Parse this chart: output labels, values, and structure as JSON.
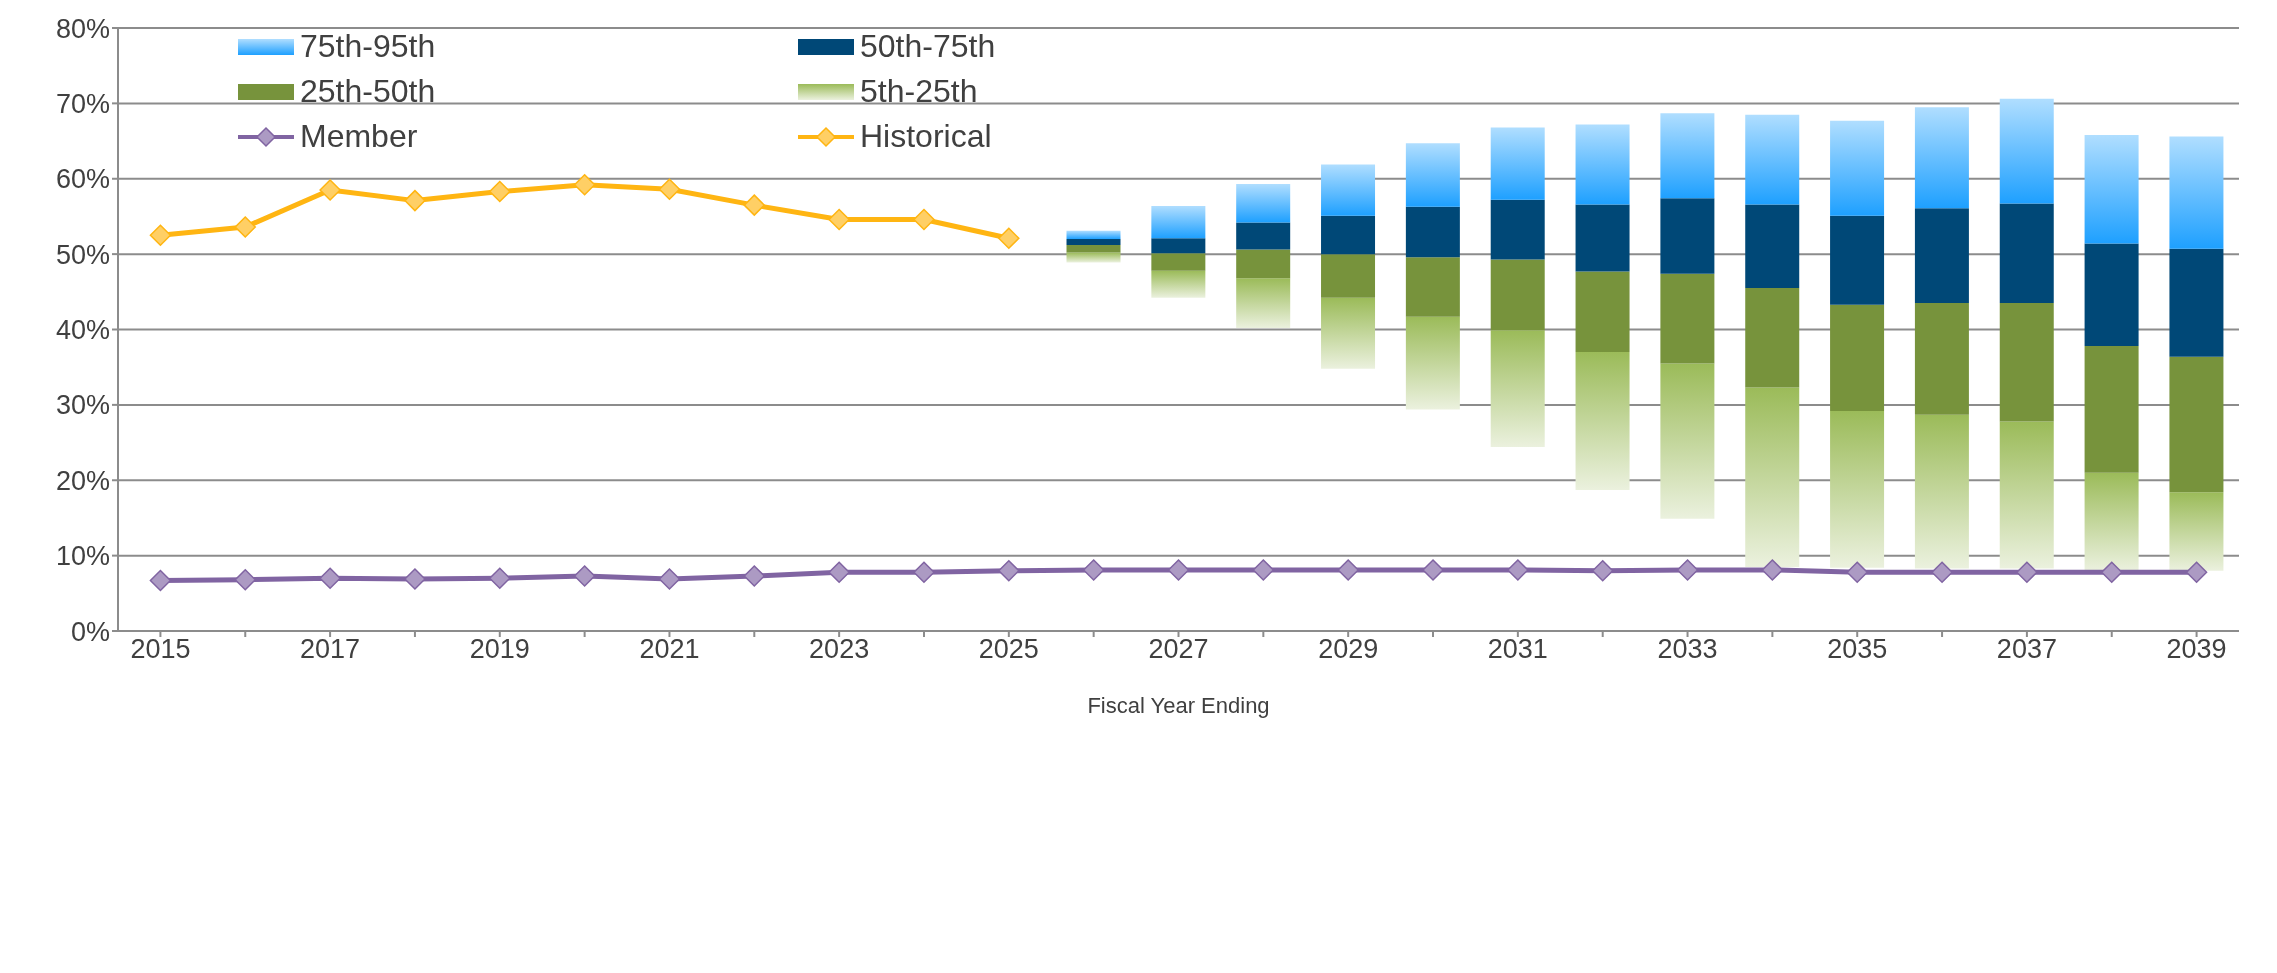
{
  "chart_data": {
    "type": "bar",
    "xlabel": "Fiscal Year Ending",
    "categories": [
      "2015",
      null,
      "2017",
      null,
      "2019",
      null,
      "2021",
      null,
      "2023",
      null,
      "2025",
      null,
      "2027",
      null,
      "2029",
      null,
      "2031",
      null,
      "2033",
      null,
      "2035",
      null,
      "2037",
      null,
      "2039"
    ],
    "series": [
      {
        "name": "5th-25th",
        "color": "#9bbb59",
        "base": [
          null,
          null,
          null,
          null,
          null,
          null,
          null,
          null,
          null,
          null,
          null,
          48.9,
          44.2,
          40.2,
          34.8,
          29.4,
          24.4,
          18.7,
          14.9,
          8.5,
          8.4,
          8.3,
          8.3,
          8.0,
          8.0
        ],
        "values": [
          null,
          null,
          null,
          null,
          null,
          null,
          null,
          null,
          null,
          null,
          null,
          1.3,
          3.6,
          6.6,
          9.4,
          12.3,
          15.5,
          18.3,
          20.6,
          23.8,
          20.8,
          20.4,
          19.5,
          13.0,
          10.4
        ]
      },
      {
        "name": "25th-50th",
        "color": "#77933c",
        "base": [
          null,
          null,
          null,
          null,
          null,
          null,
          null,
          null,
          null,
          null,
          null,
          50.2,
          47.8,
          46.8,
          44.2,
          41.7,
          39.9,
          37.0,
          35.5,
          32.3,
          29.2,
          28.7,
          27.8,
          21.0,
          18.4
        ],
        "values": [
          null,
          null,
          null,
          null,
          null,
          null,
          null,
          null,
          null,
          null,
          null,
          1.0,
          2.3,
          3.8,
          5.8,
          7.9,
          9.4,
          10.7,
          11.9,
          13.2,
          14.1,
          14.8,
          15.7,
          16.8,
          18.0
        ]
      },
      {
        "name": "50th-75th",
        "color": "#004877",
        "base": [
          null,
          null,
          null,
          null,
          null,
          null,
          null,
          null,
          null,
          null,
          null,
          51.2,
          50.1,
          50.6,
          50.0,
          49.6,
          49.3,
          47.7,
          47.4,
          45.5,
          43.3,
          43.5,
          43.5,
          37.8,
          36.4
        ],
        "values": [
          null,
          null,
          null,
          null,
          null,
          null,
          null,
          null,
          null,
          null,
          null,
          0.8,
          2.0,
          3.6,
          5.1,
          6.7,
          7.9,
          8.9,
          10.0,
          11.1,
          11.8,
          12.6,
          13.2,
          13.6,
          14.3
        ]
      },
      {
        "name": "75th-95th",
        "color": "#1ea0ff",
        "base": [
          null,
          null,
          null,
          null,
          null,
          null,
          null,
          null,
          null,
          null,
          null,
          52.0,
          52.1,
          54.2,
          55.1,
          56.3,
          57.2,
          56.6,
          57.4,
          56.6,
          55.1,
          56.1,
          56.7,
          51.4,
          50.7
        ],
        "values": [
          null,
          null,
          null,
          null,
          null,
          null,
          null,
          null,
          null,
          null,
          null,
          1.1,
          4.3,
          5.1,
          6.8,
          8.4,
          9.6,
          10.6,
          11.3,
          11.9,
          12.6,
          13.4,
          13.9,
          14.4,
          14.9
        ]
      },
      {
        "name": "Member",
        "type": "line",
        "color": "#8064a2",
        "values": [
          6.7,
          6.8,
          7.0,
          6.9,
          7.0,
          7.3,
          6.9,
          7.3,
          7.8,
          7.8,
          8.0,
          8.1,
          8.1,
          8.1,
          8.1,
          8.1,
          8.1,
          8.0,
          8.1,
          8.1,
          7.8,
          7.8,
          7.8,
          7.8,
          7.8
        ]
      },
      {
        "name": "Historical",
        "type": "line",
        "color": "#ffb512",
        "values": [
          52.5,
          53.6,
          58.5,
          57.1,
          58.3,
          59.2,
          58.6,
          56.5,
          54.6,
          54.6,
          52.1,
          null,
          null,
          null,
          null,
          null,
          null,
          null,
          null,
          null,
          null,
          null,
          null,
          null,
          null
        ]
      }
    ],
    "ylim": [
      0,
      80
    ],
    "yticks": [
      {
        "value": 0,
        "label": "0%"
      },
      {
        "value": 10,
        "label": "10%"
      },
      {
        "value": 20,
        "label": "20%"
      },
      {
        "value": 30,
        "label": "30%"
      },
      {
        "value": 40,
        "label": "40%"
      },
      {
        "value": 50,
        "label": "50%"
      },
      {
        "value": 60,
        "label": "60%"
      },
      {
        "value": 70,
        "label": "70%"
      },
      {
        "value": 80,
        "label": "80%"
      }
    ],
    "grid": "y",
    "legend": "top left",
    "marker": "diamond"
  }
}
